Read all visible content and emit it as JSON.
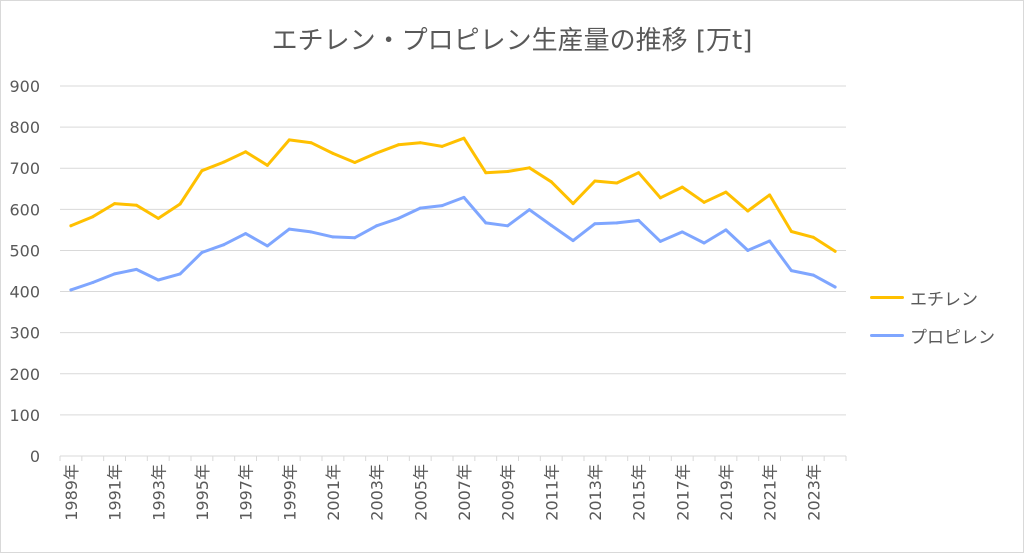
{
  "chart_data": {
    "type": "line",
    "title": "エチレン・プロピレン生産量の推移 [万t]",
    "xlabel": "",
    "ylabel": "",
    "ylim": [
      0,
      900
    ],
    "yticks": [
      0,
      100,
      200,
      300,
      400,
      500,
      600,
      700,
      800,
      900
    ],
    "x": [
      "1989年",
      "1990年",
      "1991年",
      "1992年",
      "1993年",
      "1994年",
      "1995年",
      "1996年",
      "1997年",
      "1998年",
      "1999年",
      "2000年",
      "2001年",
      "2002年",
      "2003年",
      "2004年",
      "2005年",
      "2006年",
      "2007年",
      "2008年",
      "2009年",
      "2010年",
      "2011年",
      "2012年",
      "2013年",
      "2014年",
      "2015年",
      "2016年",
      "2017年",
      "2018年",
      "2019年",
      "2020年",
      "2021年",
      "2022年",
      "2023年",
      "2024年"
    ],
    "xtick_labels": [
      "1989年",
      "",
      "1991年",
      "",
      "1993年",
      "",
      "1995年",
      "",
      "1997年",
      "",
      "1999年",
      "",
      "2001年",
      "",
      "2003年",
      "",
      "2005年",
      "",
      "2007年",
      "",
      "2009年",
      "",
      "2011年",
      "",
      "2013年",
      "",
      "2015年",
      "",
      "2017年",
      "",
      "2019年",
      "",
      "2021年",
      "",
      "2023年",
      ""
    ],
    "series": [
      {
        "name": "エチレン",
        "color": "#FFC000",
        "values": [
          560,
          582,
          614,
          610,
          578,
          613,
          694,
          715,
          740,
          707,
          769,
          762,
          736,
          714,
          737,
          757,
          762,
          753,
          773,
          689,
          692,
          701,
          667,
          614,
          669,
          664,
          689,
          628,
          654,
          617,
          642,
          596,
          635,
          546,
          532,
          498
        ]
      },
      {
        "name": "プロピレン",
        "color": "#7FA6FF",
        "values": [
          404,
          422,
          443,
          454,
          428,
          443,
          495,
          514,
          541,
          511,
          552,
          545,
          533,
          531,
          560,
          578,
          603,
          609,
          629,
          567,
          560,
          599,
          561,
          524,
          565,
          567,
          573,
          522,
          545,
          518,
          550,
          500,
          523,
          451,
          440,
          411
        ]
      }
    ],
    "legend_position": "right",
    "grid": true
  }
}
